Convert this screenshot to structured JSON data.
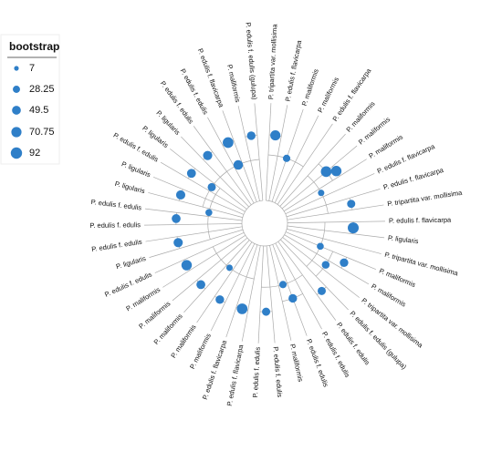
{
  "legend": {
    "title": "bootstrap",
    "values": [
      7,
      28.25,
      49.5,
      70.75,
      92
    ]
  },
  "tips": [
    "P. tripartita var. mollisima",
    "P. edulis f. flavicarpa",
    "P. maliformis",
    "P. maliformis",
    "P. edulis f. flavicarpa",
    "P. maliformis",
    "P. maliformis",
    "P. maliformis",
    "P. edulis f. flavicarpa",
    "P. edulis f. flavicarpa",
    "P. tripartita var. mollisima",
    "P. edulis f. flavicarpa",
    "P. ligularis",
    "P. tripartita var. mollisima",
    "P. maliformis",
    "P. maliformis",
    "P. tripartita var. mollisima",
    "P. edulis f. edulis (gulupa)",
    "P. edulis f. edulis",
    "P. edulis f. edulis",
    "P. edulis f. edulis",
    "P. maliformis",
    "P. edulis f. edulis",
    "P. edulis f. edulis",
    "P. edulis f. flavicarpa",
    "P. edulis f. flavicarpa",
    "P. maliformis",
    "P. maliformis",
    "P. maliformis",
    "P. maliformis",
    "P. maliformis",
    "P. edulis f. edulis",
    "P. ligularis",
    "P. edulis f. edulis",
    "P. edulis f. edulis",
    "P. edulis f. edulis",
    "P. ligularis",
    "P. ligularis",
    "P. edulis f. edulis",
    "P. ligularis",
    "P. ligularis",
    "P. edulis f. edulis",
    "P. edulis f. edulis",
    "P. edulis f. flavicarpa",
    "P. maliformis",
    "P. edulis f. edulis (gulupa)"
  ],
  "nodes": [
    {
      "tips": [
        0,
        1
      ],
      "bootstrap": 70
    },
    {
      "tips": [
        5,
        7
      ],
      "bootstrap": 80
    },
    {
      "tips": [
        6,
        7
      ],
      "bootstrap": 75
    },
    {
      "tips": [
        9,
        10
      ],
      "bootstrap": 40
    },
    {
      "tips": [
        11,
        12
      ],
      "bootstrap": 85
    },
    {
      "tips": [
        14,
        15
      ],
      "bootstrap": 45
    },
    {
      "tips": [
        17,
        18
      ],
      "bootstrap": 40
    },
    {
      "tips": [
        19,
        21
      ],
      "bootstrap": 45
    },
    {
      "tips": [
        22,
        23
      ],
      "bootstrap": 40
    },
    {
      "tips": [
        24,
        25
      ],
      "bootstrap": 80
    },
    {
      "tips": [
        26,
        27
      ],
      "bootstrap": 45
    },
    {
      "tips": [
        28,
        29
      ],
      "bootstrap": 50
    },
    {
      "tips": [
        30,
        31
      ],
      "bootstrap": 75
    },
    {
      "tips": [
        32,
        33
      ],
      "bootstrap": 55
    },
    {
      "tips": [
        34,
        35
      ],
      "bootstrap": 50
    },
    {
      "tips": [
        36,
        37
      ],
      "bootstrap": 55
    },
    {
      "tips": [
        38,
        39
      ],
      "bootstrap": 50
    },
    {
      "tips": [
        40,
        41
      ],
      "bootstrap": 55
    },
    {
      "tips": [
        42,
        43
      ],
      "bootstrap": 80
    },
    {
      "tips": [
        44,
        45
      ],
      "bootstrap": 45
    },
    {
      "tips": [
        0,
        4
      ],
      "bootstrap": 30
    },
    {
      "tips": [
        5,
        10
      ],
      "bootstrap": 20
    },
    {
      "tips": [
        11,
        17
      ],
      "bootstrap": 25
    },
    {
      "tips": [
        18,
        23
      ],
      "bootstrap": 30
    },
    {
      "tips": [
        24,
        31
      ],
      "bootstrap": 20
    },
    {
      "tips": [
        32,
        39
      ],
      "bootstrap": 25
    },
    {
      "tips": [
        40,
        45
      ],
      "bootstrap": 60
    },
    {
      "tips": [
        14,
        17
      ],
      "bootstrap": 35
    },
    {
      "tips": [
        36,
        41
      ],
      "bootstrap": 40
    }
  ]
}
